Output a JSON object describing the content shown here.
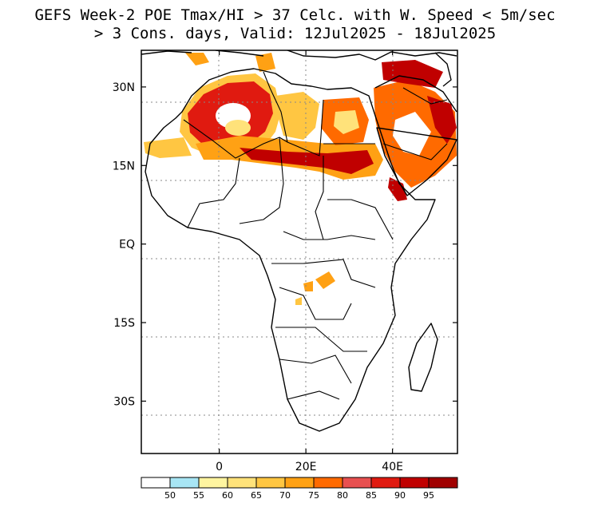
{
  "title": {
    "line1": "GEFS Week-2 POE Tmax/HI > 37 Celc. with W. Speed < 5m/sec",
    "line2": "> 3 Cons. days, Valid: 12Jul2025 - 18Jul2025"
  },
  "map": {
    "lon_range": [
      -18,
      55
    ],
    "lat_range": [
      -40,
      37
    ],
    "lat_ticks": [
      {
        "value": 30,
        "label": "30N"
      },
      {
        "value": 15,
        "label": "15N"
      },
      {
        "value": 0,
        "label": "EQ"
      },
      {
        "value": -15,
        "label": "15S"
      },
      {
        "value": -30,
        "label": "30S"
      }
    ],
    "lon_ticks": [
      {
        "value": 0,
        "label": "0"
      },
      {
        "value": 20,
        "label": "20E"
      },
      {
        "value": 40,
        "label": "40E"
      }
    ],
    "grid": "dotted"
  },
  "colorbar": {
    "levels": [
      "50",
      "55",
      "60",
      "65",
      "70",
      "75",
      "80",
      "85",
      "90",
      "95"
    ],
    "colors": [
      "#ffffff",
      "#a8e6f5",
      "#fff5a0",
      "#ffe27a",
      "#ffc642",
      "#ffa114",
      "#ff6a00",
      "#e85050",
      "#e01a10",
      "#c00000",
      "#a00000"
    ]
  }
}
